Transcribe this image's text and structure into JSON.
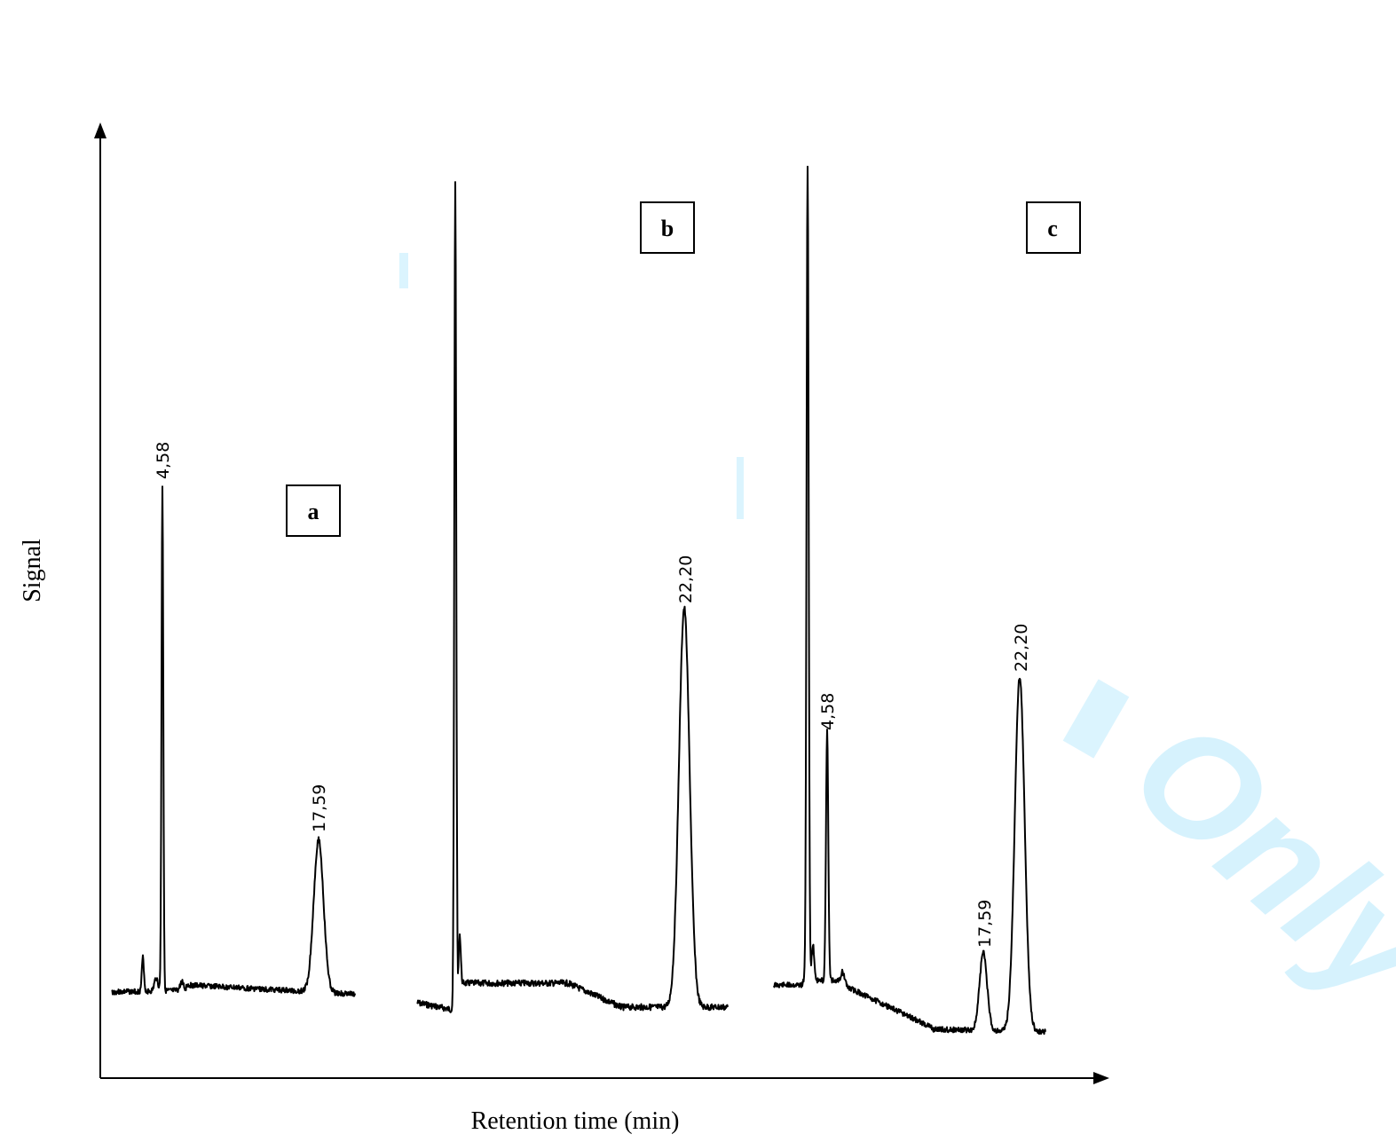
{
  "chart_data": {
    "type": "line",
    "xlabel": "Retention time (min)",
    "ylabel": "Signal",
    "grid": false,
    "panels": [
      {
        "id": "a",
        "label": "a",
        "peaks": [
          {
            "label": "4,58",
            "time": 4.58
          },
          {
            "label": "17,59",
            "time": 17.59
          }
        ]
      },
      {
        "id": "b",
        "label": "b",
        "peaks": [
          {
            "label": "22,20",
            "time": 22.2
          }
        ]
      },
      {
        "id": "c",
        "label": "c",
        "peaks": [
          {
            "label": "4,58",
            "time": 4.58
          },
          {
            "label": "17,59",
            "time": 17.59
          },
          {
            "label": "22,20",
            "time": 22.2
          }
        ]
      }
    ]
  },
  "watermark": {
    "text": "Only",
    "color": "#6fd3fb"
  }
}
